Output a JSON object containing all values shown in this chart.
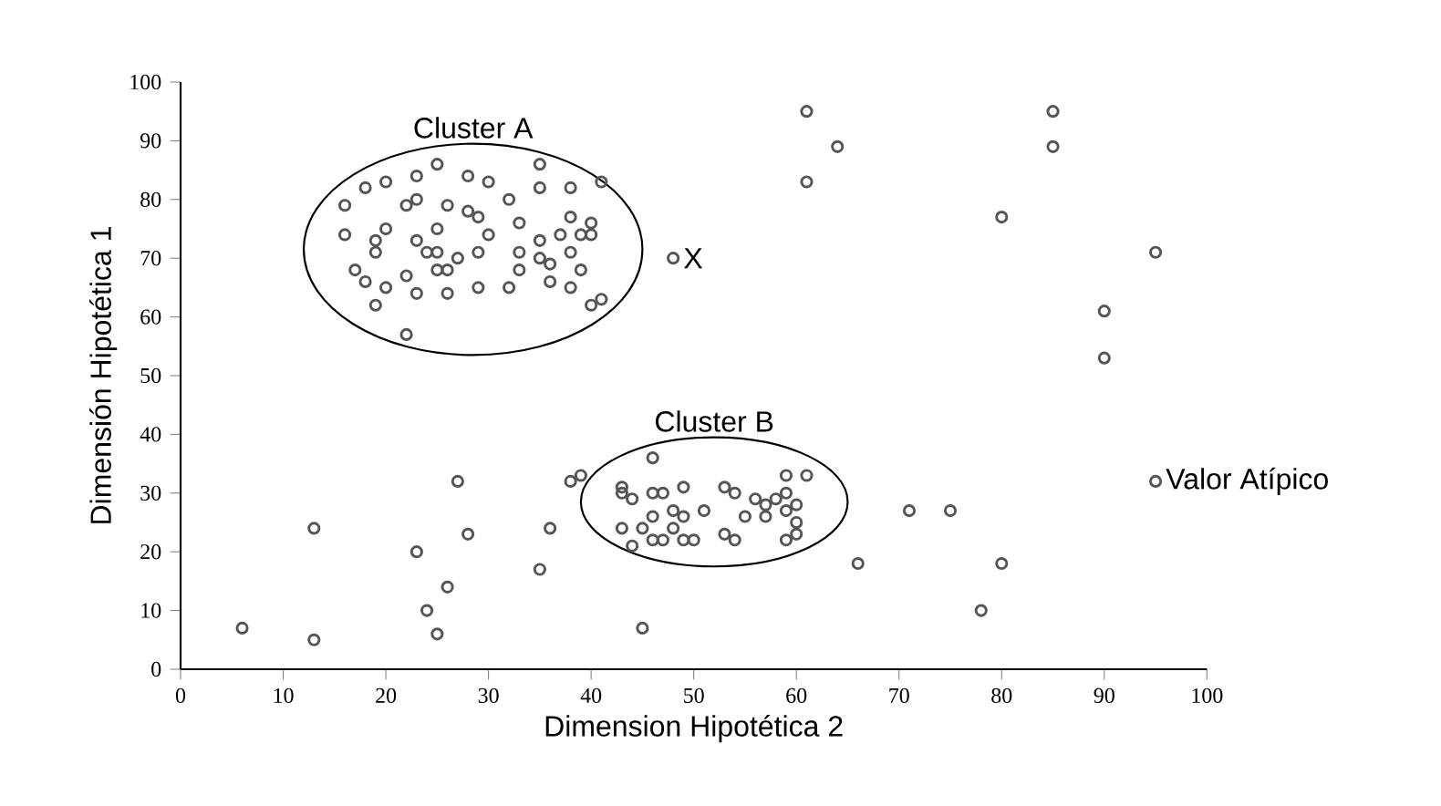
{
  "chart_data": {
    "type": "scatter",
    "xlabel": "Dimension Hipotética 2",
    "ylabel": "Dimensión Hipotética 1",
    "xlim": [
      0,
      100
    ],
    "ylim": [
      0,
      100
    ],
    "xticks": [
      0,
      10,
      20,
      30,
      40,
      50,
      60,
      70,
      80,
      90,
      100
    ],
    "yticks": [
      0,
      10,
      20,
      30,
      40,
      50,
      60,
      70,
      80,
      90,
      100
    ],
    "grid": false,
    "legend": false,
    "marker": "circle",
    "series": [
      {
        "name": "Cluster A",
        "color": "#555555",
        "x": [
          25,
          35,
          23,
          18,
          20,
          16,
          16,
          17,
          18,
          19,
          22,
          28,
          30,
          32,
          35,
          38,
          41,
          33,
          33,
          33,
          32,
          29,
          26,
          23,
          22,
          25,
          25,
          24,
          26,
          28,
          29,
          30,
          29,
          27,
          22,
          23,
          20,
          19,
          19,
          23,
          25,
          26,
          35,
          37,
          38,
          40,
          39,
          40,
          38,
          39,
          36,
          35,
          36,
          38,
          40,
          41,
          20
        ],
        "values": [
          86,
          86,
          84,
          82,
          83,
          79,
          74,
          68,
          66,
          62,
          57,
          84,
          83,
          80,
          82,
          82,
          83,
          76,
          71,
          68,
          65,
          65,
          64,
          64,
          67,
          75,
          71,
          71,
          79,
          78,
          77,
          74,
          71,
          70,
          79,
          80,
          75,
          73,
          71,
          73,
          68,
          68,
          73,
          74,
          77,
          76,
          74,
          74,
          71,
          68,
          69,
          70,
          66,
          65,
          62,
          63,
          65
        ]
      },
      {
        "name": "Cluster B",
        "color": "#555555",
        "x": [
          46,
          43,
          43,
          44,
          46,
          47,
          49,
          43,
          44,
          45,
          46,
          48,
          49,
          51,
          46,
          47,
          49,
          50,
          48,
          53,
          54,
          53,
          54,
          55,
          56,
          57,
          58,
          59,
          61,
          59,
          60,
          59,
          60,
          59,
          60,
          57
        ],
        "values": [
          36,
          31,
          30,
          29,
          30,
          30,
          31,
          24,
          21,
          24,
          26,
          27,
          26,
          27,
          22,
          22,
          22,
          22,
          24,
          31,
          30,
          23,
          22,
          26,
          29,
          28,
          29,
          33,
          33,
          30,
          28,
          27,
          25,
          22,
          23,
          26
        ]
      },
      {
        "color": "#555555",
        "x": [
          6,
          13,
          13,
          23,
          24,
          25,
          26,
          27,
          28,
          35,
          36,
          38,
          39,
          45,
          48,
          61,
          64,
          61,
          66,
          71,
          75,
          80,
          78,
          80,
          85,
          85,
          95,
          90,
          90,
          95
        ],
        "values": [
          7,
          5,
          24,
          20,
          10,
          6,
          14,
          32,
          23,
          17,
          24,
          32,
          33,
          7,
          70,
          95,
          89,
          83,
          18,
          27,
          27,
          18,
          10,
          77,
          95,
          89,
          71,
          61,
          53,
          32
        ]
      }
    ],
    "annotations": [
      {
        "text": "X",
        "x": 48,
        "y": 70
      },
      {
        "text": "Valor Atípico",
        "x": 95,
        "y": 32
      }
    ]
  }
}
